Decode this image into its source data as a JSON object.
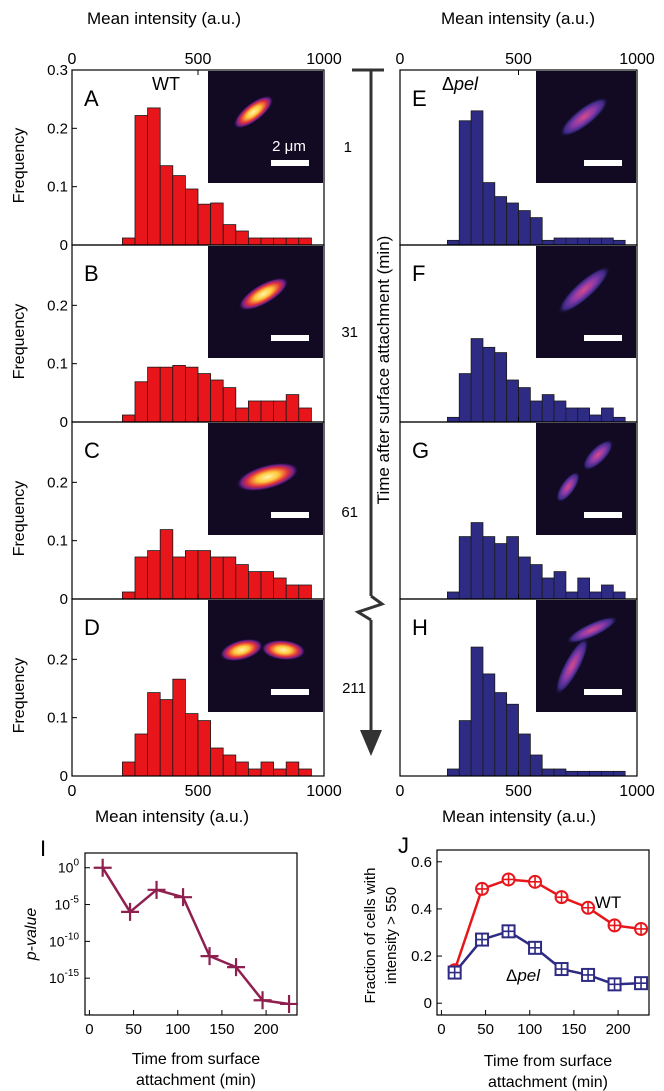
{
  "figure": {
    "top_xlabel": "Mean intensity (a.u.)",
    "bottom_xlabel": "Mean intensity (a.u.)",
    "ylabel": "Frequency",
    "time_axis_label": "Time after surface attachment (min)",
    "time_marks": [
      "1",
      "31",
      "61",
      "211"
    ],
    "scale_bar_label": "2 μm",
    "hist_xticks": [
      "0",
      "500",
      "1000"
    ],
    "hist_yticks_top": [
      "0",
      "0.1",
      "0.2",
      "0.3"
    ],
    "hist_yticks_other": [
      "0",
      "0.1",
      "0.2"
    ]
  },
  "chart_data": [
    {
      "panel": "A",
      "type": "bar",
      "strain": "WT",
      "label": "WT",
      "color": "#e8161b",
      "x": [
        200,
        250,
        300,
        350,
        400,
        450,
        500,
        550,
        600,
        650,
        700,
        750,
        800,
        850,
        900
      ],
      "values": [
        0.012,
        0.222,
        0.235,
        0.136,
        0.119,
        0.096,
        0.07,
        0.072,
        0.035,
        0.024,
        0.012,
        0.012,
        0.012,
        0.012,
        0.012
      ],
      "xlim": [
        0,
        1000
      ],
      "ylim": [
        0,
        0.3
      ]
    },
    {
      "panel": "B",
      "type": "bar",
      "strain": "WT",
      "color": "#e8161b",
      "x": [
        200,
        250,
        300,
        350,
        400,
        450,
        500,
        550,
        600,
        650,
        700,
        750,
        800,
        850,
        900
      ],
      "values": [
        0.012,
        0.069,
        0.094,
        0.094,
        0.097,
        0.094,
        0.083,
        0.072,
        0.059,
        0.024,
        0.036,
        0.036,
        0.036,
        0.047,
        0.024
      ],
      "xlim": [
        0,
        1000
      ],
      "ylim": [
        0,
        0.3
      ]
    },
    {
      "panel": "C",
      "type": "bar",
      "strain": "WT",
      "color": "#e8161b",
      "x": [
        200,
        250,
        300,
        350,
        400,
        450,
        500,
        550,
        600,
        650,
        700,
        750,
        800,
        850,
        900
      ],
      "values": [
        0.012,
        0.072,
        0.083,
        0.119,
        0.072,
        0.083,
        0.083,
        0.072,
        0.072,
        0.059,
        0.047,
        0.047,
        0.036,
        0.024,
        0.024
      ],
      "xlim": [
        0,
        1000
      ],
      "ylim": [
        0,
        0.3
      ]
    },
    {
      "panel": "D",
      "type": "bar",
      "strain": "WT",
      "color": "#e8161b",
      "x": [
        200,
        250,
        300,
        350,
        400,
        450,
        500,
        550,
        600,
        650,
        700,
        750,
        800,
        850,
        900
      ],
      "values": [
        0.024,
        0.072,
        0.143,
        0.131,
        0.166,
        0.107,
        0.095,
        0.048,
        0.036,
        0.024,
        0.012,
        0.024,
        0.012,
        0.024,
        0.012
      ],
      "xlim": [
        0,
        1000
      ],
      "ylim": [
        0,
        0.3
      ]
    },
    {
      "panel": "E",
      "type": "bar",
      "strain": "Δpel",
      "label_prefix": "Δ",
      "label_italic": "pel",
      "color": "#2e2b84",
      "x": [
        200,
        250,
        300,
        350,
        400,
        450,
        500,
        550,
        600,
        650,
        700,
        750,
        800,
        850,
        900
      ],
      "values": [
        0.008,
        0.213,
        0.23,
        0.107,
        0.083,
        0.072,
        0.059,
        0.047,
        0.008,
        0.012,
        0.012,
        0.012,
        0.012,
        0.012,
        0.008
      ],
      "xlim": [
        0,
        1000
      ],
      "ylim": [
        0,
        0.3
      ]
    },
    {
      "panel": "F",
      "type": "bar",
      "strain": "Δpel",
      "color": "#2e2b84",
      "x": [
        200,
        250,
        300,
        350,
        400,
        450,
        500,
        550,
        600,
        650,
        700,
        750,
        800,
        850,
        900
      ],
      "values": [
        0.008,
        0.083,
        0.143,
        0.128,
        0.119,
        0.072,
        0.059,
        0.036,
        0.047,
        0.036,
        0.024,
        0.024,
        0.012,
        0.024,
        0.008
      ],
      "xlim": [
        0,
        1000
      ],
      "ylim": [
        0,
        0.3
      ]
    },
    {
      "panel": "G",
      "type": "bar",
      "strain": "Δpel",
      "color": "#2e2b84",
      "x": [
        200,
        250,
        300,
        350,
        400,
        450,
        500,
        550,
        600,
        650,
        700,
        750,
        800,
        850,
        900
      ],
      "values": [
        0.012,
        0.107,
        0.131,
        0.107,
        0.095,
        0.107,
        0.072,
        0.059,
        0.036,
        0.047,
        0.012,
        0.036,
        0.012,
        0.024,
        0.012
      ],
      "xlim": [
        0,
        1000
      ],
      "ylim": [
        0,
        0.3
      ]
    },
    {
      "panel": "H",
      "type": "bar",
      "strain": "Δpel",
      "color": "#2e2b84",
      "x": [
        200,
        250,
        300,
        350,
        400,
        450,
        500,
        550,
        600,
        650,
        700,
        750,
        800,
        850,
        900
      ],
      "values": [
        0.012,
        0.095,
        0.221,
        0.175,
        0.143,
        0.123,
        0.072,
        0.036,
        0.012,
        0.012,
        0.008,
        0.008,
        0.008,
        0.008,
        0.008
      ],
      "xlim": [
        0,
        1000
      ],
      "ylim": [
        0,
        0.3
      ]
    },
    {
      "panel": "I",
      "type": "line",
      "scale": "log",
      "xlabel": "Time from surface attachment (min)",
      "ylabel": "p-value",
      "x": [
        15,
        46,
        76,
        106,
        136,
        166,
        196,
        226
      ],
      "log10_y": [
        0,
        -6,
        -3,
        -4,
        -12,
        -13.5,
        -18,
        -18.5
      ],
      "xlim": [
        -5,
        235
      ],
      "ylim_log10": [
        -20,
        2
      ],
      "xticks": [
        "0",
        "50",
        "100",
        "150",
        "200"
      ],
      "ytick_bases": [
        "10",
        "10",
        "10",
        "10"
      ],
      "ytick_exps": [
        "0",
        "-5",
        "-10",
        "-15"
      ],
      "color": "#8e1f4e"
    },
    {
      "panel": "J",
      "type": "line",
      "xlabel": "Time from surface attachment (min)",
      "ylabel_line1": "Fraction of cells with",
      "ylabel_line2": "intensity > 550",
      "xlim": [
        -5,
        235
      ],
      "ylim": [
        -0.05,
        0.65
      ],
      "xticks": [
        "0",
        "50",
        "100",
        "150",
        "200"
      ],
      "yticks": [
        "0",
        "0.2",
        "0.4",
        "0.6"
      ],
      "series": [
        {
          "name": "WT",
          "color": "#e8161b",
          "x": [
            15,
            46,
            76,
            106,
            136,
            166,
            196,
            226
          ],
          "values": [
            0.14,
            0.485,
            0.525,
            0.515,
            0.45,
            0.405,
            0.33,
            0.315
          ]
        },
        {
          "name": "Δpel",
          "name_prefix": "Δ",
          "name_italic": "pel",
          "color": "#2e2b84",
          "x": [
            15,
            46,
            76,
            106,
            136,
            166,
            196,
            226
          ],
          "values": [
            0.13,
            0.27,
            0.305,
            0.235,
            0.145,
            0.12,
            0.08,
            0.085
          ]
        }
      ]
    }
  ]
}
